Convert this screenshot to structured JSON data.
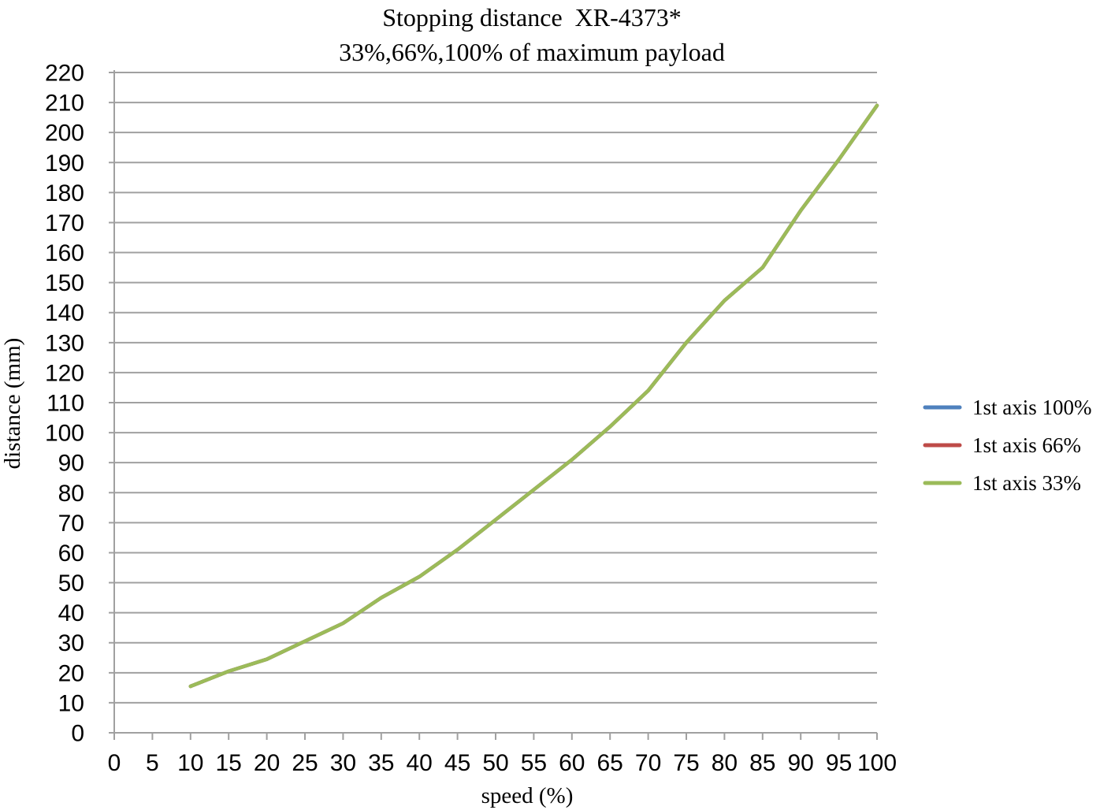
{
  "page": {
    "background": "#FFFFFF"
  },
  "chart_data": {
    "type": "line",
    "title": "Stopping distance  XR-4373*",
    "subtitle": "33%,66%,100% of maximum payload",
    "xlabel": "speed (%)",
    "ylabel": "distance (mm)",
    "xlim": [
      0,
      100
    ],
    "ylim": [
      0,
      220
    ],
    "x_tick_step": 5,
    "y_tick_step": 10,
    "grid": "horizontal",
    "legend_position": "right",
    "colors": {
      "grid": "#A0A0A0",
      "axis": "#A0A0A0",
      "text": "#000000"
    },
    "x": [
      10,
      15,
      20,
      25,
      30,
      35,
      40,
      45,
      50,
      55,
      60,
      65,
      70,
      75,
      80,
      85,
      90,
      95,
      100
    ],
    "series": [
      {
        "name": "1st axis 100%",
        "color": "#4F81BD",
        "values": [
          15.5,
          20.5,
          24.5,
          30.5,
          36.5,
          45,
          52,
          61,
          71,
          81,
          91,
          102,
          114,
          130,
          144,
          155,
          174,
          191,
          209
        ]
      },
      {
        "name": "1st axis 66%",
        "color": "#BE4B48",
        "values": [
          15.5,
          20.5,
          24.5,
          30.5,
          36.5,
          45,
          52,
          61,
          71,
          81,
          91,
          102,
          114,
          130,
          144,
          155,
          174,
          191,
          209
        ]
      },
      {
        "name": "1st axis 33%",
        "color": "#9BBB59",
        "values": [
          15.5,
          20.5,
          24.5,
          30.5,
          36.5,
          45,
          52,
          61,
          71,
          81,
          91,
          102,
          114,
          130,
          144,
          155,
          174,
          191,
          209
        ]
      }
    ]
  }
}
